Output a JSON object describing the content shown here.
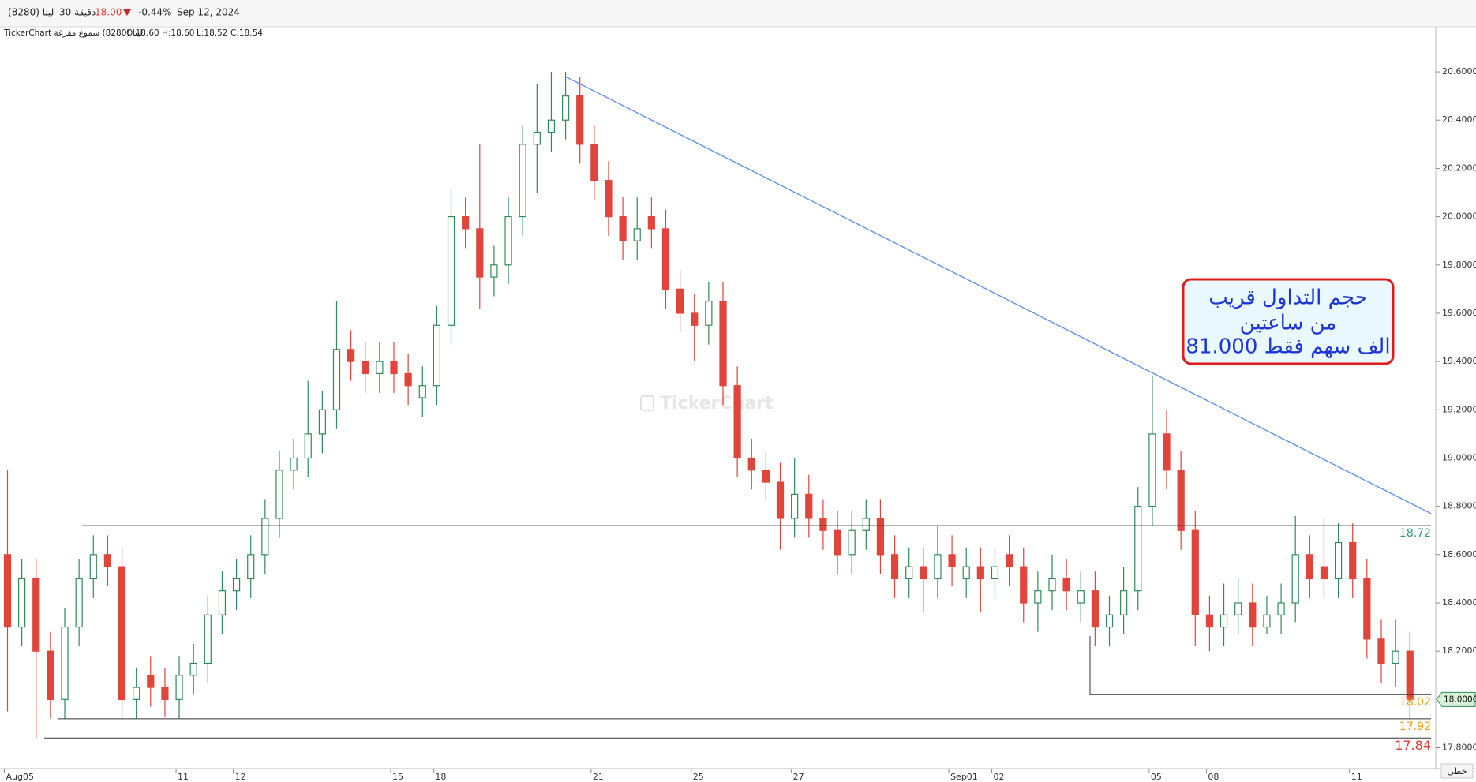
{
  "header": {
    "symbol": "لينا (8280)",
    "interval": "30 دقيقة",
    "last": "18.00",
    "change": "-0.44%",
    "date": "Sep 12, 2024",
    "source": "TickerChart لينا (8280) شموع مفرغة",
    "o": "O:18.60",
    "h": "H:18.60",
    "l": "L:18.52",
    "c": "C:18.54"
  },
  "annotation": [
    "حجم التداول قريب",
    "من ساعتين",
    "81.000 الف سهم فقط"
  ],
  "watermark": "TickerChart",
  "button": "خطي",
  "chart_data": {
    "type": "candlestick",
    "categories": [
      "Aug05",
      null,
      null,
      null,
      null,
      null,
      null,
      null,
      null,
      null,
      null,
      null,
      "11",
      null,
      null,
      null,
      "12",
      null,
      null,
      null,
      null,
      null,
      null,
      null,
      null,
      null,
      null,
      "15",
      null,
      null,
      "18",
      null,
      null,
      null,
      null,
      null,
      null,
      null,
      null,
      null,
      null,
      "21",
      null,
      null,
      null,
      null,
      null,
      null,
      "25",
      null,
      null,
      null,
      null,
      null,
      null,
      "27",
      null,
      null,
      null,
      null,
      null,
      null,
      null,
      null,
      null,
      null,
      "Sep01",
      null,
      null,
      "02",
      null,
      null,
      null,
      null,
      null,
      null,
      null,
      null,
      null,
      null,
      "05",
      null,
      null,
      null,
      "08",
      null,
      null,
      null,
      null,
      null,
      null,
      null,
      null,
      null,
      "11",
      null,
      null,
      null,
      null
    ],
    "open": [
      18.6,
      18.3,
      18.5,
      18.2,
      18.0,
      18.3,
      18.5,
      18.6,
      18.55,
      18.0,
      18.1,
      18.05,
      18.0,
      18.1,
      18.15,
      18.35,
      18.45,
      18.5,
      18.6,
      18.75,
      18.95,
      19.0,
      19.1,
      19.2,
      19.45,
      19.4,
      19.35,
      19.4,
      19.35,
      19.25,
      19.3,
      19.55,
      20.0,
      19.95,
      19.75,
      19.8,
      20.0,
      20.3,
      20.35,
      20.4,
      20.5,
      20.3,
      20.15,
      20.0,
      19.9,
      20.0,
      19.95,
      19.7,
      19.6,
      19.55,
      19.65,
      19.3,
      19.0,
      18.95,
      18.9,
      18.75,
      18.85,
      18.75,
      18.7,
      18.6,
      18.7,
      18.75,
      18.6,
      18.5,
      18.55,
      18.5,
      18.6,
      18.5,
      18.55,
      18.5,
      18.6,
      18.55,
      18.4,
      18.45,
      18.5,
      18.4,
      18.45,
      18.3,
      18.35,
      18.45,
      18.8,
      19.1,
      18.95,
      18.7,
      18.35,
      18.3,
      18.35,
      18.4,
      18.3,
      18.35,
      18.4,
      18.6,
      18.55,
      18.5,
      18.65,
      18.5,
      18.25,
      18.15,
      18.2
    ],
    "high": [
      18.95,
      18.58,
      18.58,
      18.28,
      18.38,
      18.58,
      18.68,
      18.68,
      18.63,
      18.13,
      18.18,
      18.13,
      18.18,
      18.23,
      18.43,
      18.53,
      18.58,
      18.68,
      18.83,
      19.03,
      19.08,
      19.32,
      19.28,
      19.65,
      19.53,
      19.48,
      19.48,
      19.48,
      19.43,
      19.38,
      19.63,
      20.12,
      20.08,
      20.3,
      19.88,
      20.08,
      20.38,
      20.55,
      20.6,
      20.6,
      20.58,
      20.38,
      20.23,
      20.08,
      20.08,
      20.08,
      20.03,
      19.78,
      19.68,
      19.73,
      19.73,
      19.38,
      19.08,
      19.03,
      18.98,
      19.0,
      18.93,
      18.83,
      18.78,
      18.78,
      18.83,
      18.83,
      18.68,
      18.63,
      18.63,
      18.72,
      18.68,
      18.63,
      18.63,
      18.63,
      18.68,
      18.63,
      18.53,
      18.6,
      18.58,
      18.53,
      18.53,
      18.43,
      18.55,
      18.88,
      19.34,
      19.2,
      19.03,
      18.78,
      18.43,
      18.48,
      18.5,
      18.48,
      18.43,
      18.48,
      18.76,
      18.68,
      18.75,
      18.73,
      18.73,
      18.58,
      18.33,
      18.33,
      18.28
    ],
    "low": [
      17.95,
      18.22,
      17.84,
      17.92,
      17.92,
      18.22,
      18.42,
      18.47,
      17.92,
      17.92,
      17.97,
      17.93,
      17.92,
      18.02,
      18.07,
      18.27,
      18.37,
      18.42,
      18.52,
      18.67,
      18.87,
      18.92,
      19.02,
      19.12,
      19.32,
      19.27,
      19.27,
      19.27,
      19.22,
      19.17,
      19.22,
      19.47,
      19.87,
      19.62,
      19.67,
      19.72,
      19.92,
      20.1,
      20.27,
      20.32,
      20.22,
      20.07,
      19.92,
      19.82,
      19.82,
      19.87,
      19.62,
      19.52,
      19.4,
      19.47,
      19.22,
      18.92,
      18.87,
      18.82,
      18.62,
      18.67,
      18.67,
      18.62,
      18.52,
      18.52,
      18.62,
      18.52,
      18.42,
      18.42,
      18.36,
      18.42,
      18.47,
      18.42,
      18.36,
      18.42,
      18.47,
      18.32,
      18.28,
      18.37,
      18.37,
      18.32,
      18.22,
      18.22,
      18.27,
      18.37,
      18.72,
      18.87,
      18.62,
      18.22,
      18.2,
      18.22,
      18.27,
      18.22,
      18.27,
      18.27,
      18.32,
      18.42,
      18.42,
      18.42,
      18.42,
      18.17,
      18.07,
      18.05,
      17.92
    ],
    "close": [
      18.3,
      18.5,
      18.2,
      18.0,
      18.3,
      18.5,
      18.6,
      18.55,
      18.0,
      18.05,
      18.05,
      18.0,
      18.1,
      18.15,
      18.35,
      18.45,
      18.5,
      18.6,
      18.75,
      18.95,
      19.0,
      19.1,
      19.2,
      19.45,
      19.4,
      19.35,
      19.4,
      19.35,
      19.3,
      19.3,
      19.55,
      20.0,
      19.95,
      19.75,
      19.8,
      20.0,
      20.3,
      20.35,
      20.4,
      20.5,
      20.3,
      20.15,
      20.0,
      19.9,
      19.95,
      19.95,
      19.7,
      19.6,
      19.55,
      19.65,
      19.3,
      19.0,
      18.95,
      18.9,
      18.75,
      18.85,
      18.75,
      18.7,
      18.6,
      18.7,
      18.75,
      18.6,
      18.5,
      18.55,
      18.5,
      18.6,
      18.55,
      18.55,
      18.5,
      18.55,
      18.55,
      18.4,
      18.45,
      18.5,
      18.45,
      18.45,
      18.3,
      18.35,
      18.45,
      18.8,
      19.1,
      18.95,
      18.7,
      18.35,
      18.3,
      18.35,
      18.4,
      18.3,
      18.35,
      18.4,
      18.6,
      18.5,
      18.5,
      18.65,
      18.5,
      18.25,
      18.15,
      18.2,
      18.0
    ],
    "up_color": "#2e8b57",
    "down_color": "#e0443a",
    "ylim": [
      17.72,
      20.78
    ],
    "yticks": [
      {
        "value": 17.8,
        "label": "17.8000"
      },
      {
        "value": 18.0,
        "label": "18.0000"
      },
      {
        "value": 18.2,
        "label": "18.2000"
      },
      {
        "value": 18.4,
        "label": "18.4000"
      },
      {
        "value": 18.6,
        "label": "18.6000"
      },
      {
        "value": 18.8,
        "label": "18.8000"
      },
      {
        "value": 19.0,
        "label": "19.0000"
      },
      {
        "value": 19.2,
        "label": "19.2000"
      },
      {
        "value": 19.4,
        "label": "19.4000"
      },
      {
        "value": 19.6,
        "label": "19.6000"
      },
      {
        "value": 19.8,
        "label": "19.8000"
      },
      {
        "value": 20.0,
        "label": "20.0000"
      },
      {
        "value": 20.2,
        "label": "20.2000"
      },
      {
        "value": 20.4,
        "label": "20.4000"
      },
      {
        "value": 20.6,
        "label": "20.6000"
      }
    ],
    "levels": [
      {
        "value": 18.72,
        "color": "#2e9c7a"
      },
      {
        "value": 18.02,
        "color": "#f39c12"
      },
      {
        "value": 17.92,
        "color": "#f39c12"
      },
      {
        "value": 17.84,
        "color": "#e53935"
      }
    ],
    "trendline": {
      "values": [
        20.58,
        18.77
      ],
      "color": "#5b8def"
    },
    "current_price": {
      "value": 18.0,
      "label": "18.0000"
    }
  }
}
